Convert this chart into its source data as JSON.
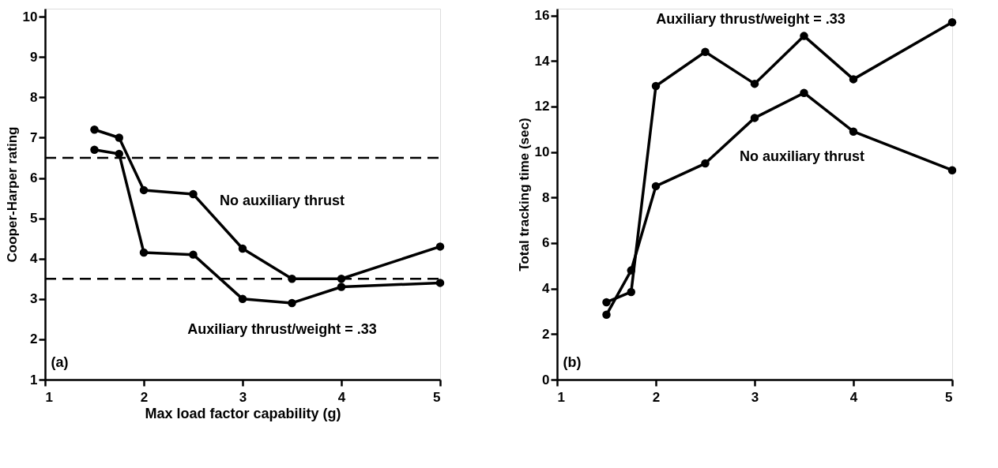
{
  "chart_data": [
    {
      "type": "line",
      "xlabel": "Max load factor capability (g)",
      "ylabel": "Cooper-Harper rating",
      "xlim": [
        1,
        5
      ],
      "xticks": [
        1,
        2,
        3,
        4,
        5
      ],
      "ylim": [
        1,
        10.2
      ],
      "yticks": [
        1,
        2,
        3,
        4,
        5,
        6,
        7,
        8,
        9,
        10
      ],
      "grid": false,
      "marker": "circle",
      "line_style": "solid",
      "x": [
        1.5,
        1.75,
        2,
        2.5,
        3,
        3.5,
        4,
        5
      ],
      "series": [
        {
          "color": "#000000",
          "values": [
            7.2,
            7.0,
            5.7,
            5.6,
            4.25,
            3.5,
            3.5,
            4.3
          ]
        },
        {
          "color": "#000000",
          "values": [
            6.7,
            6.6,
            4.15,
            4.1,
            3.0,
            2.9,
            3.3,
            3.4
          ]
        }
      ],
      "ref_lines": [
        {
          "axis": "y",
          "value": 6.5,
          "color": "#000000",
          "line_style": "dashed"
        },
        {
          "axis": "y",
          "value": 3.5,
          "color": "#000000",
          "line_style": "dashed"
        }
      ],
      "annotations": [
        "No auxiliary thrust",
        "Auxiliary thrust/weight = .33",
        "(a)"
      ]
    },
    {
      "type": "line",
      "ylabel": "Total tracking time (sec)",
      "xlim": [
        1,
        5
      ],
      "xticks": [
        1,
        2,
        3,
        4,
        5
      ],
      "ylim": [
        0,
        16.3
      ],
      "yticks": [
        0,
        2,
        4,
        6,
        8,
        10,
        12,
        14,
        16
      ],
      "grid": false,
      "marker": "circle",
      "line_style": "solid",
      "x": [
        1.5,
        1.75,
        2,
        2.5,
        3,
        3.5,
        4,
        5
      ],
      "series": [
        {
          "color": "#000000",
          "values": [
            3.4,
            3.85,
            12.9,
            14.4,
            13.0,
            15.1,
            13.2,
            15.7
          ]
        },
        {
          "color": "#000000",
          "values": [
            2.85,
            4.8,
            8.5,
            9.5,
            11.5,
            12.6,
            10.9,
            9.2
          ]
        }
      ],
      "annotations": [
        "Auxiliary thrust/weight = .33",
        "No auxiliary thrust",
        "(b)"
      ]
    }
  ]
}
